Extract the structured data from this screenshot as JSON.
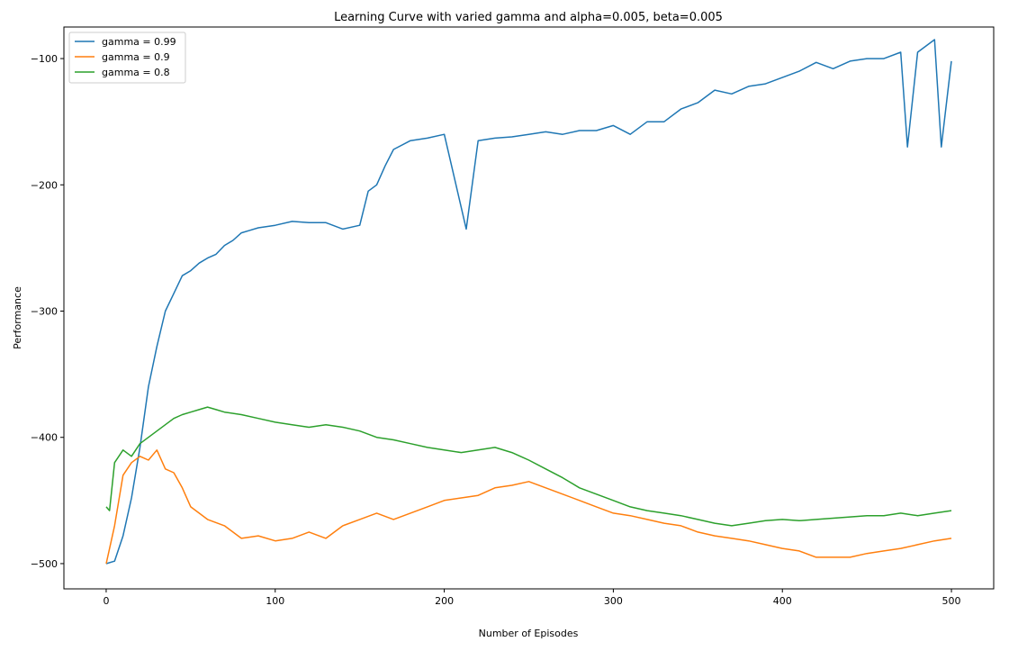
{
  "chart_data": {
    "type": "line",
    "title": "Learning Curve with varied gamma and alpha=0.005, beta=0.005",
    "xlabel": "Number of Episodes",
    "ylabel": "Performance",
    "xlim": [
      -25,
      525
    ],
    "ylim": [
      -520,
      -75
    ],
    "xticks": [
      0,
      100,
      200,
      300,
      400,
      500
    ],
    "xtick_labels": [
      "0",
      "100",
      "200",
      "300",
      "400",
      "500"
    ],
    "yticks": [
      -500,
      -400,
      -300,
      -200,
      -100
    ],
    "ytick_labels": [
      "−500",
      "−400",
      "−300",
      "−200",
      "−100"
    ],
    "grid": false,
    "legend_position": "top-left",
    "series": [
      {
        "name": "gamma = 0.99",
        "color": "#1f77b4",
        "x": [
          0,
          5,
          10,
          15,
          20,
          25,
          30,
          35,
          40,
          45,
          50,
          55,
          60,
          65,
          70,
          75,
          80,
          85,
          90,
          95,
          100,
          110,
          120,
          130,
          140,
          150,
          155,
          160,
          165,
          170,
          180,
          190,
          200,
          213,
          220,
          230,
          240,
          250,
          260,
          270,
          280,
          290,
          300,
          310,
          320,
          330,
          340,
          350,
          360,
          370,
          380,
          390,
          400,
          410,
          420,
          430,
          440,
          450,
          460,
          470,
          474,
          480,
          490,
          494,
          500
        ],
        "y": [
          -500,
          -498,
          -478,
          -448,
          -408,
          -360,
          -328,
          -300,
          -286,
          -272,
          -268,
          -262,
          -258,
          -255,
          -248,
          -244,
          -238,
          -236,
          -234,
          -233,
          -232,
          -229,
          -230,
          -230,
          -235,
          -232,
          -205,
          -200,
          -185,
          -172,
          -165,
          -163,
          -160,
          -235,
          -165,
          -163,
          -162,
          -160,
          -158,
          -160,
          -157,
          -157,
          -153,
          -160,
          -150,
          -150,
          -140,
          -135,
          -125,
          -128,
          -122,
          -120,
          -115,
          -110,
          -103,
          -108,
          -102,
          -100,
          -100,
          -95,
          -170,
          -95,
          -85,
          -170,
          -102
        ]
      },
      {
        "name": "gamma = 0.9",
        "color": "#ff7f0e",
        "x": [
          0,
          5,
          10,
          15,
          20,
          25,
          30,
          35,
          40,
          45,
          50,
          60,
          70,
          80,
          90,
          100,
          110,
          120,
          130,
          140,
          150,
          160,
          170,
          180,
          190,
          200,
          210,
          220,
          230,
          240,
          250,
          260,
          270,
          280,
          290,
          300,
          310,
          320,
          330,
          340,
          350,
          360,
          370,
          380,
          390,
          400,
          410,
          420,
          430,
          440,
          450,
          460,
          470,
          480,
          490,
          500
        ],
        "y": [
          -500,
          -470,
          -430,
          -420,
          -415,
          -418,
          -410,
          -425,
          -428,
          -440,
          -455,
          -465,
          -470,
          -480,
          -478,
          -482,
          -480,
          -475,
          -480,
          -470,
          -465,
          -460,
          -465,
          -460,
          -455,
          -450,
          -448,
          -446,
          -440,
          -438,
          -435,
          -440,
          -445,
          -450,
          -455,
          -460,
          -462,
          -465,
          -468,
          -470,
          -475,
          -478,
          -480,
          -482,
          -485,
          -488,
          -490,
          -495,
          -495,
          -495,
          -492,
          -490,
          -488,
          -485,
          -482,
          -480
        ]
      },
      {
        "name": "gamma = 0.8",
        "color": "#2ca02c",
        "x": [
          0,
          2,
          5,
          10,
          15,
          20,
          25,
          30,
          35,
          40,
          45,
          50,
          55,
          60,
          65,
          70,
          80,
          90,
          100,
          110,
          120,
          130,
          140,
          150,
          160,
          170,
          180,
          190,
          200,
          210,
          220,
          230,
          240,
          250,
          260,
          270,
          280,
          290,
          300,
          310,
          320,
          330,
          340,
          350,
          360,
          370,
          380,
          390,
          400,
          410,
          420,
          430,
          440,
          450,
          460,
          470,
          480,
          490,
          500
        ],
        "y": [
          -455,
          -458,
          -420,
          -410,
          -415,
          -405,
          -400,
          -395,
          -390,
          -385,
          -382,
          -380,
          -378,
          -376,
          -378,
          -380,
          -382,
          -385,
          -388,
          -390,
          -392,
          -390,
          -392,
          -395,
          -400,
          -402,
          -405,
          -408,
          -410,
          -412,
          -410,
          -408,
          -412,
          -418,
          -425,
          -432,
          -440,
          -445,
          -450,
          -455,
          -458,
          -460,
          -462,
          -465,
          -468,
          -470,
          -468,
          -466,
          -465,
          -466,
          -465,
          -464,
          -463,
          -462,
          -462,
          -460,
          -462,
          -460,
          -458
        ]
      }
    ]
  }
}
